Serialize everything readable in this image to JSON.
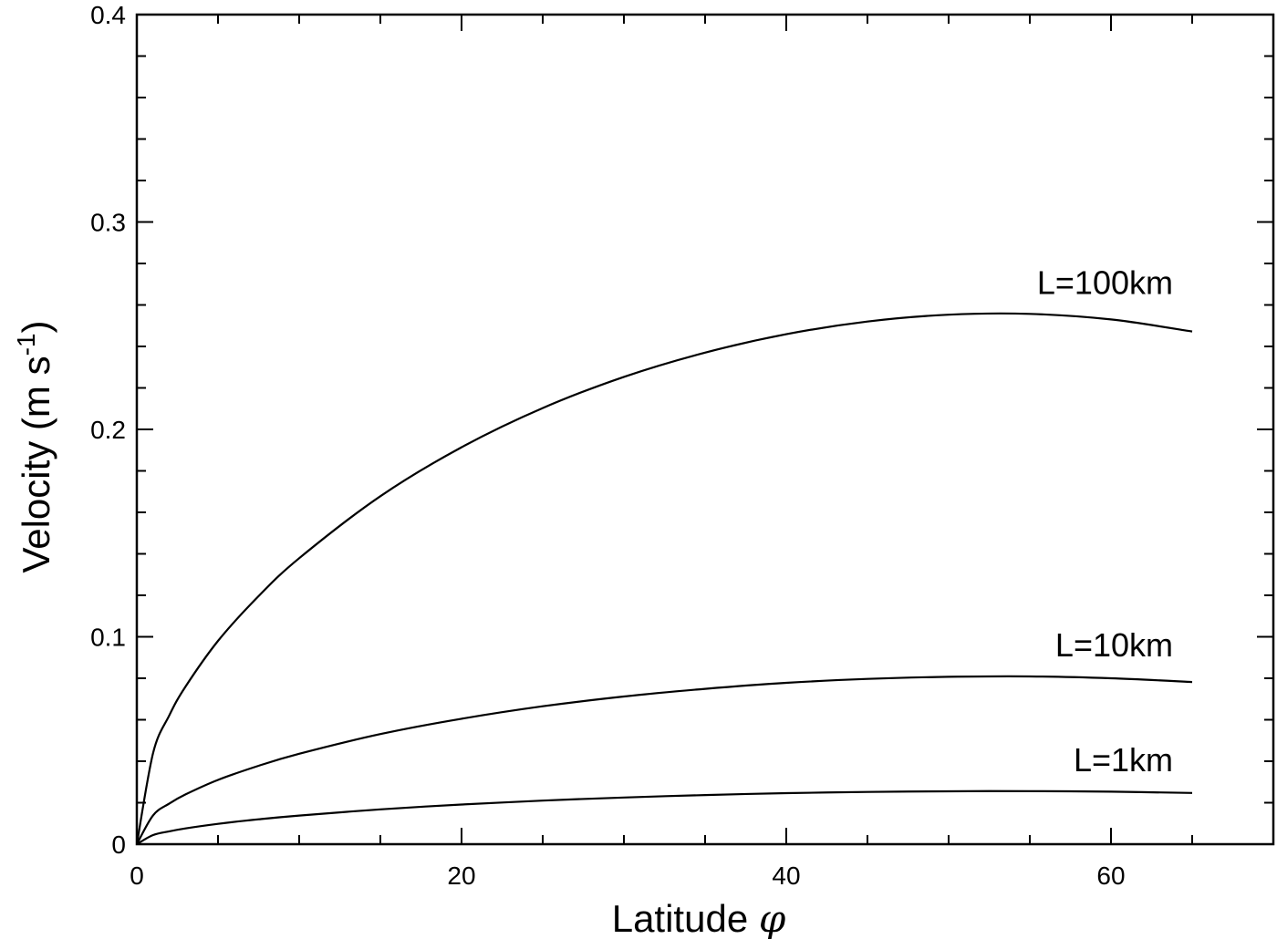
{
  "chart_data": {
    "type": "line",
    "xlabel": "Latitude",
    "xlabel_symbol": "φ",
    "ylabel": "Velocity (m s",
    "ylabel_sup": "-1",
    "ylabel_close": ")",
    "xlim": [
      0,
      70
    ],
    "ylim": [
      0,
      0.4
    ],
    "x_ticks": [
      0,
      20,
      40,
      60
    ],
    "x_tick_labels": [
      "0",
      "20",
      "40",
      "60"
    ],
    "x_minor_step": 5,
    "y_ticks": [
      0,
      0.1,
      0.2,
      0.3,
      0.4
    ],
    "y_tick_labels": [
      "0",
      "0.1",
      "0.2",
      "0.3",
      "0.4"
    ],
    "y_minor_step": 0.02,
    "grid": false,
    "legend": "inline labels at right end of each curve",
    "series": [
      {
        "name": "L=100km",
        "x": [
          0,
          1,
          2,
          3,
          5,
          7.5,
          10,
          15,
          20,
          25,
          30,
          35,
          40,
          45,
          50,
          55,
          60,
          65
        ],
        "values": [
          0,
          0.0439,
          0.0621,
          0.076,
          0.098,
          0.1196,
          0.1379,
          0.1678,
          0.1914,
          0.2103,
          0.2253,
          0.237,
          0.2459,
          0.252,
          0.2553,
          0.2557,
          0.253,
          0.2472
        ]
      },
      {
        "name": "L=10km",
        "x": [
          0,
          1,
          2,
          3,
          5,
          7.5,
          10,
          15,
          20,
          25,
          30,
          35,
          40,
          45,
          50,
          55,
          60,
          65
        ],
        "values": [
          0,
          0.0139,
          0.0196,
          0.024,
          0.031,
          0.0378,
          0.0436,
          0.0531,
          0.0605,
          0.0665,
          0.0712,
          0.0749,
          0.0778,
          0.0797,
          0.0807,
          0.0809,
          0.08,
          0.0782
        ]
      },
      {
        "name": "L=1km",
        "x": [
          0,
          1,
          2,
          3,
          5,
          7.5,
          10,
          15,
          20,
          25,
          30,
          35,
          40,
          45,
          50,
          55,
          60,
          65
        ],
        "values": [
          0,
          0.0044,
          0.0062,
          0.0076,
          0.0098,
          0.012,
          0.0138,
          0.0168,
          0.0191,
          0.021,
          0.0225,
          0.0237,
          0.0246,
          0.0252,
          0.0255,
          0.0256,
          0.0253,
          0.0247
        ]
      }
    ]
  }
}
